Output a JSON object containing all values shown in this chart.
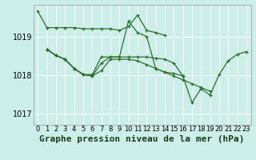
{
  "title": "Graphe pression niveau de la mer (hPa)",
  "background_color": "#cceee8",
  "plot_bg_color": "#cceee8",
  "grid_color": "#ffffff",
  "line_color": "#2d6e2d",
  "border_color": "#aaaaaa",
  "xlim": [
    -0.5,
    23.5
  ],
  "ylim": [
    1016.7,
    1019.85
  ],
  "yticks": [
    1017,
    1018,
    1019
  ],
  "xticks": [
    0,
    1,
    2,
    3,
    4,
    5,
    6,
    7,
    8,
    9,
    10,
    11,
    12,
    13,
    14,
    15,
    16,
    17,
    18,
    19,
    20,
    21,
    22,
    23
  ],
  "line1_x": [
    0,
    1,
    2,
    3,
    4,
    5,
    6,
    7,
    8,
    9,
    10,
    11,
    12,
    13,
    14
  ],
  "line1_y": [
    1019.68,
    1019.25,
    1019.25,
    1019.25,
    1019.25,
    1019.22,
    1019.22,
    1019.22,
    1019.22,
    1019.18,
    1019.28,
    1019.58,
    1019.18,
    1019.12,
    1019.05
  ],
  "line2_x": [
    1,
    2,
    3,
    4,
    5,
    6,
    7,
    8,
    9,
    10,
    11,
    12,
    13,
    14,
    15,
    16
  ],
  "line2_y": [
    1018.68,
    1018.52,
    1018.42,
    1018.18,
    1018.02,
    1017.98,
    1018.32,
    1018.48,
    1018.48,
    1019.42,
    1019.12,
    1019.02,
    1018.18,
    1018.08,
    1018.05,
    1017.98
  ],
  "line3_x": [
    1,
    2,
    3,
    4,
    5,
    6,
    7,
    8,
    9,
    10,
    11,
    12,
    13,
    14,
    15,
    16,
    17,
    18,
    19
  ],
  "line3_y": [
    1018.68,
    1018.52,
    1018.42,
    1018.18,
    1018.02,
    1017.98,
    1018.12,
    1018.42,
    1018.42,
    1018.42,
    1018.38,
    1018.28,
    1018.18,
    1018.08,
    1017.98,
    1017.88,
    1017.78,
    1017.68,
    1017.58
  ],
  "line4_x": [
    1,
    2,
    3,
    4,
    5,
    6,
    7,
    8,
    9,
    10,
    11,
    12,
    13,
    14,
    15,
    16,
    17,
    18,
    19,
    20,
    21,
    22,
    23
  ],
  "line4_y": [
    1018.68,
    1018.52,
    1018.42,
    1018.18,
    1018.02,
    1018.02,
    1018.48,
    1018.48,
    1018.48,
    1018.48,
    1018.48,
    1018.48,
    1018.45,
    1018.42,
    1018.32,
    1017.98,
    1017.28,
    1017.65,
    1017.48,
    1018.02,
    1018.38,
    1018.55,
    1018.62
  ],
  "title_fontsize": 8,
  "tick_fontsize": 6,
  "ytick_fontsize": 7
}
